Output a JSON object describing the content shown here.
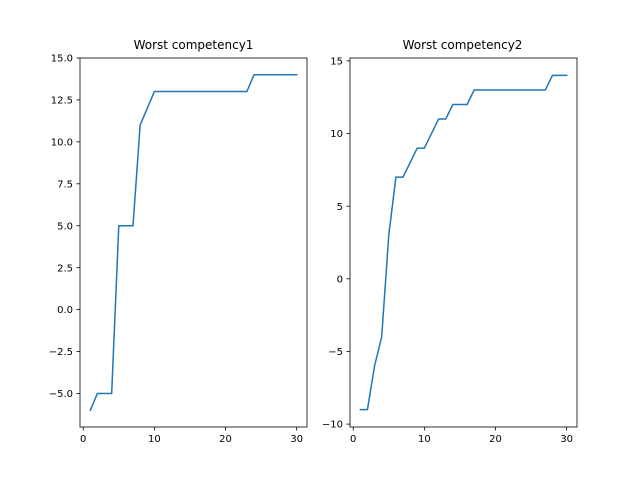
{
  "chart_data": [
    {
      "type": "line",
      "title": "Worst competency1",
      "xlabel": "",
      "ylabel": "",
      "xlim": [
        -0.45,
        31.45
      ],
      "ylim": [
        -7.0,
        15.0
      ],
      "xticks": [
        0,
        10,
        20,
        30
      ],
      "xtick_labels": [
        "0",
        "10",
        "20",
        "30"
      ],
      "yticks": [
        -5.0,
        -2.5,
        0.0,
        2.5,
        5.0,
        7.5,
        10.0,
        12.5,
        15.0
      ],
      "ytick_labels": [
        "−5.0",
        "−2.5",
        "0.0",
        "2.5",
        "5.0",
        "7.5",
        "10.0",
        "12.5",
        "15.0"
      ],
      "grid": false,
      "color": "#1f77b4",
      "series": [
        {
          "x": [
            1,
            2,
            3,
            4,
            5,
            6,
            7,
            8,
            9,
            10,
            11,
            12,
            13,
            14,
            15,
            16,
            17,
            18,
            19,
            20,
            21,
            22,
            23,
            24,
            25,
            26,
            27,
            28,
            29,
            30
          ],
          "y": [
            -6,
            -5,
            -5,
            -5,
            5,
            5,
            5,
            11,
            12,
            13,
            13,
            13,
            13,
            13,
            13,
            13,
            13,
            13,
            13,
            13,
            13,
            13,
            13,
            14,
            14,
            14,
            14,
            14,
            14,
            14
          ]
        }
      ]
    },
    {
      "type": "line",
      "title": "Worst competency2",
      "xlabel": "",
      "ylabel": "",
      "xlim": [
        -0.45,
        31.45
      ],
      "ylim": [
        -10.2,
        15.2
      ],
      "xticks": [
        0,
        10,
        20,
        30
      ],
      "xtick_labels": [
        "0",
        "10",
        "20",
        "30"
      ],
      "yticks": [
        -10,
        -5,
        0,
        5,
        10,
        15
      ],
      "ytick_labels": [
        "−10",
        "−5",
        "0",
        "5",
        "10",
        "15"
      ],
      "grid": false,
      "color": "#1f77b4",
      "series": [
        {
          "x": [
            1,
            2,
            3,
            4,
            5,
            6,
            7,
            8,
            9,
            10,
            11,
            12,
            13,
            14,
            15,
            16,
            17,
            18,
            19,
            20,
            21,
            22,
            23,
            24,
            25,
            26,
            27,
            28,
            29,
            30
          ],
          "y": [
            -9,
            -9,
            -6,
            -4,
            3,
            7,
            7,
            8,
            9,
            9,
            10,
            11,
            11,
            12,
            12,
            12,
            13,
            13,
            13,
            13,
            13,
            13,
            13,
            13,
            13,
            13,
            13,
            14,
            14,
            14
          ]
        }
      ]
    }
  ]
}
